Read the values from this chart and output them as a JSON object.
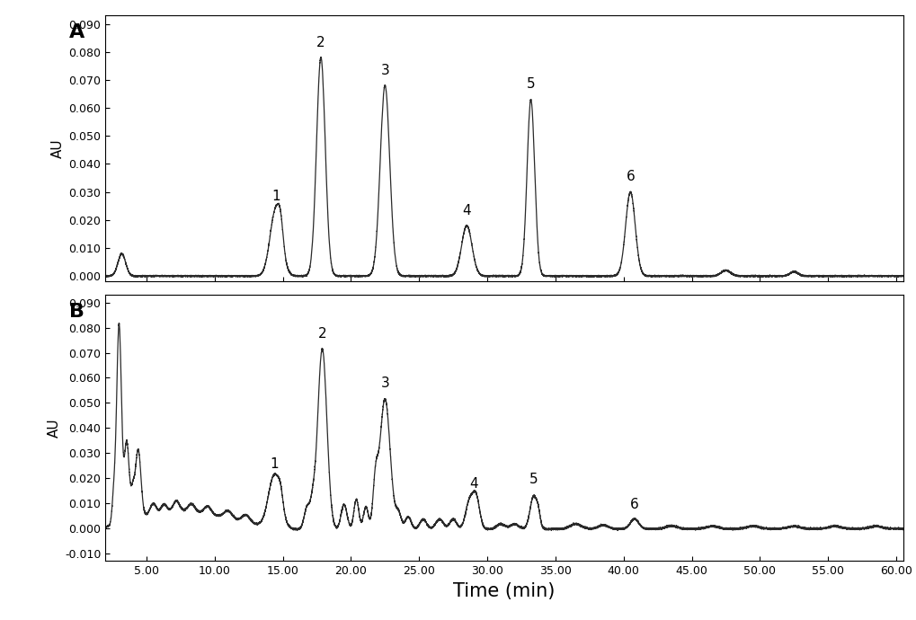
{
  "background_color": "#ffffff",
  "line_color": "#2a2a2a",
  "line_width": 0.9,
  "xlim": [
    2.0,
    60.5
  ],
  "xticks": [
    5.0,
    10.0,
    15.0,
    20.0,
    25.0,
    30.0,
    35.0,
    40.0,
    45.0,
    50.0,
    55.0,
    60.0
  ],
  "xtick_labels": [
    "5.00",
    "10.00",
    "15.00",
    "20.00",
    "25.00",
    "30.00",
    "35.00",
    "40.00",
    "45.00",
    "50.00",
    "55.00",
    "60.00"
  ],
  "panel_A": {
    "ylim": [
      -0.002,
      0.093
    ],
    "yticks": [
      0.0,
      0.01,
      0.02,
      0.03,
      0.04,
      0.05,
      0.06,
      0.07,
      0.08,
      0.09
    ],
    "ylabel": "AU",
    "label": "A"
  },
  "panel_B": {
    "ylim": [
      -0.013,
      0.093
    ],
    "yticks": [
      -0.01,
      0.0,
      0.01,
      0.02,
      0.03,
      0.04,
      0.05,
      0.06,
      0.07,
      0.08,
      0.09
    ],
    "ylabel": "AU",
    "label": "B"
  },
  "xlabel": "Time (min)",
  "xlabel_fontsize": 15,
  "ylabel_fontsize": 11,
  "tick_fontsize": 9,
  "panel_label_fontsize": 16,
  "peak_label_fontsize": 11
}
